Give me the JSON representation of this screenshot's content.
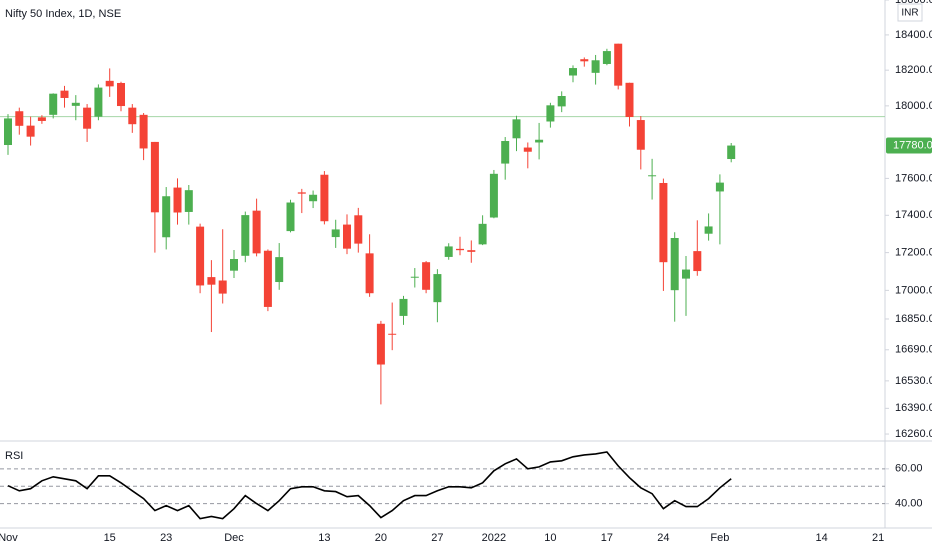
{
  "chart_data": [
    {
      "type": "candlestick",
      "title": "Nifty 50 Index, 1D, NSE",
      "currency": "INR",
      "categories": [
        "Nov",
        null,
        null,
        null,
        null,
        null,
        null,
        null,
        null,
        "15",
        null,
        null,
        null,
        null,
        "23",
        null,
        null,
        null,
        null,
        null,
        "Dec",
        null,
        null,
        null,
        null,
        null,
        null,
        null,
        "13",
        null,
        null,
        null,
        null,
        "20",
        null,
        null,
        null,
        null,
        "27",
        null,
        null,
        null,
        null,
        "2022",
        null,
        null,
        null,
        null,
        "10",
        null,
        null,
        null,
        null,
        "17",
        null,
        null,
        null,
        null,
        "24",
        null,
        null,
        null,
        null,
        "Feb",
        null,
        null,
        null,
        null,
        null,
        null,
        null,
        null,
        "14",
        null,
        null,
        null,
        null,
        "21"
      ],
      "open": [
        17783,
        17970,
        17890,
        17936,
        17950,
        18085,
        18000,
        17990,
        17940,
        18140,
        18128,
        17990,
        17950,
        17800,
        17282,
        17550,
        17418,
        17339,
        17070,
        17052,
        17104,
        17183,
        17425,
        17210,
        17044,
        17315,
        17524,
        17476,
        17620,
        17283,
        17350,
        17400,
        17196,
        16825,
        16773,
        16866,
        17067,
        17149,
        16938,
        17177,
        17220,
        17213,
        17244,
        17388,
        17681,
        17820,
        17769,
        17797,
        17913,
        17997,
        18170,
        18262,
        18185,
        18235,
        18350,
        18129,
        17921,
        17613,
        17575,
        17001,
        17062,
        17208,
        17301,
        17529,
        17706,
        null,
        null,
        null,
        null,
        null,
        null,
        null,
        null,
        null,
        null,
        null,
        null,
        null
      ],
      "high": [
        17954,
        17990,
        17940,
        17948,
        18070,
        18112,
        18060,
        18010,
        18120,
        18210,
        18135,
        18010,
        17960,
        17800,
        17553,
        17600,
        17564,
        17355,
        17160,
        17325,
        17214,
        17420,
        17490,
        17217,
        17251,
        17484,
        17543,
        17534,
        17640,
        17376,
        17405,
        17440,
        17298,
        16840,
        16936,
        16971,
        17118,
        17155,
        17112,
        17250,
        17285,
        17265,
        17400,
        17646,
        17827,
        17945,
        17797,
        17905,
        18017,
        18081,
        18227,
        18272,
        18286,
        18321,
        18350,
        18129,
        17943,
        17707,
        17599,
        17309,
        17182,
        17373,
        17410,
        17622,
        17794,
        null,
        null,
        null,
        null,
        null,
        null,
        null,
        null,
        null,
        null,
        null,
        null,
        null
      ],
      "low": [
        17729,
        17840,
        17780,
        17900,
        17930,
        17990,
        17920,
        17800,
        17920,
        18050,
        17970,
        17850,
        17700,
        17200,
        17217,
        17350,
        17350,
        16985,
        16782,
        16931,
        17065,
        17149,
        17180,
        16891,
        17003,
        17308,
        17412,
        17439,
        17351,
        17225,
        17192,
        17200,
        16966,
        16410,
        16688,
        16819,
        17015,
        16985,
        16833,
        17162,
        17186,
        17146,
        17240,
        17384,
        17593,
        17749,
        17655,
        17704,
        17879,
        17965,
        18132,
        18220,
        18119,
        18228,
        18092,
        17885,
        17649,
        17485,
        16997,
        16836,
        16866,
        17077,
        17264,
        17244,
        17688,
        null,
        null,
        null,
        null,
        null,
        null,
        null,
        null,
        null,
        null,
        null,
        null,
        null
      ],
      "close": [
        17930,
        17889,
        17829,
        17916,
        18068,
        18044,
        18017,
        17873,
        18102,
        18109,
        17999,
        17898,
        17764,
        17416,
        17503,
        17415,
        17536,
        17026,
        17030,
        16983,
        17166,
        17401,
        17196,
        16913,
        17176,
        17469,
        17517,
        17511,
        17368,
        17324,
        17221,
        17248,
        16985,
        16614,
        16770,
        16955,
        17072,
        17003,
        17086,
        17233,
        17213,
        17204,
        17354,
        17625,
        17805,
        17925,
        17746,
        17812,
        18003,
        18055,
        18212,
        18250,
        18256,
        18308,
        18113,
        17938,
        17757,
        17617,
        17149,
        17278,
        17110,
        17102,
        17340,
        17577,
        17780,
        null,
        null,
        null,
        null,
        null,
        null,
        null,
        null,
        null,
        null,
        null,
        null,
        null
      ],
      "up_color": "#4caf50",
      "down_color": "#f44336",
      "log_scale": true,
      "ylim": [
        16230,
        18600
      ],
      "yticks": [
        {
          "value": 18600,
          "label": "18600.00"
        },
        {
          "value": 18400,
          "label": "18400.00"
        },
        {
          "value": 18200,
          "label": "18200.00"
        },
        {
          "value": 18000,
          "label": "18000.00"
        },
        {
          "value": 17600,
          "label": "17600.00"
        },
        {
          "value": 17400,
          "label": "17400.00"
        },
        {
          "value": 17200,
          "label": "17200.00"
        },
        {
          "value": 17000,
          "label": "17000.00"
        },
        {
          "value": 16850,
          "label": "16850.00"
        },
        {
          "value": 16690,
          "label": "16690.00"
        },
        {
          "value": 16530,
          "label": "16530.00"
        },
        {
          "value": 16390,
          "label": "16390.00"
        },
        {
          "value": 16260,
          "label": "16260.00"
        }
      ],
      "hline": {
        "value": 17940,
        "color": "#a5d6a7"
      },
      "last_price": {
        "value": 17780,
        "label": "17780.00",
        "color": "#4caf50"
      }
    },
    {
      "type": "line",
      "title": "RSI",
      "color": "#000000",
      "values": [
        50.3,
        47.4,
        48.6,
        53.1,
        55.4,
        54.3,
        53.1,
        48.6,
        56,
        56,
        52,
        47.4,
        42.9,
        36,
        38.9,
        36,
        38.9,
        31.4,
        32.6,
        31.4,
        37.1,
        44.6,
        40,
        36,
        41.7,
        48.6,
        49.7,
        49.7,
        47.4,
        46.9,
        44,
        44.6,
        38.9,
        32,
        36,
        41.7,
        44.6,
        44.6,
        47.4,
        49.7,
        49.7,
        49.1,
        52,
        58.9,
        62.9,
        65.7,
        60,
        61.1,
        64,
        64.6,
        66.9,
        68,
        68.6,
        69.7,
        61.7,
        54.9,
        49.1,
        45.7,
        37.1,
        41.7,
        38.3,
        38.3,
        42.9,
        49.1,
        54.3,
        null,
        null,
        null,
        null,
        null,
        null,
        null,
        null,
        null,
        null,
        null,
        null,
        null
      ],
      "ylim": [
        26,
        76
      ],
      "yticks": [
        {
          "value": 60,
          "label": "60.00"
        },
        {
          "value": 40,
          "label": "40.00"
        }
      ],
      "levels": [
        60,
        50,
        40
      ]
    }
  ]
}
